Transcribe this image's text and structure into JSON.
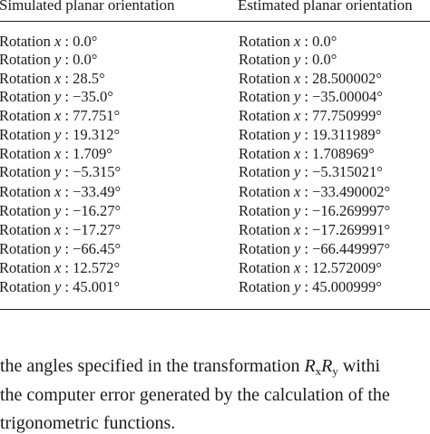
{
  "table": {
    "headers": [
      "Simulated planar orientation",
      "Estimated planar orientation"
    ],
    "rows": [
      {
        "axis": "x",
        "simulated": "0.0°",
        "estimated": "0.0°"
      },
      {
        "axis": "y",
        "simulated": "0.0°",
        "estimated": "0.0°"
      },
      {
        "axis": "x",
        "simulated": "28.5°",
        "estimated": "28.500002°"
      },
      {
        "axis": "y",
        "simulated": "−35.0°",
        "estimated": "−35.00004°"
      },
      {
        "axis": "x",
        "simulated": "77.751°",
        "estimated": "77.750999°"
      },
      {
        "axis": "y",
        "simulated": "19.312°",
        "estimated": "19.311989°"
      },
      {
        "axis": "x",
        "simulated": "1.709°",
        "estimated": "1.708969°"
      },
      {
        "axis": "y",
        "simulated": "−5.315°",
        "estimated": "−5.315021°"
      },
      {
        "axis": "x",
        "simulated": "−33.49°",
        "estimated": "−33.490002°"
      },
      {
        "axis": "y",
        "simulated": "−16.27°",
        "estimated": "−16.269997°"
      },
      {
        "axis": "x",
        "simulated": "−17.27°",
        "estimated": "−17.269991°"
      },
      {
        "axis": "y",
        "simulated": "−66.45°",
        "estimated": "−66.449997°"
      },
      {
        "axis": "x",
        "simulated": "12.572°",
        "estimated": "12.572009°"
      },
      {
        "axis": "y",
        "simulated": "45.001°",
        "estimated": "45.000999°"
      }
    ],
    "label_word": "Rotation",
    "separator": " : "
  },
  "caption": {
    "line1_prefix": "the angles specified in the transformation ",
    "line1_R": "R",
    "line1_sub_x": "x",
    "line1_sub_y": "y",
    "line1_suffix": " withi",
    "line2": "the computer error generated by the calculation of the",
    "line3": "trigonometric functions."
  }
}
